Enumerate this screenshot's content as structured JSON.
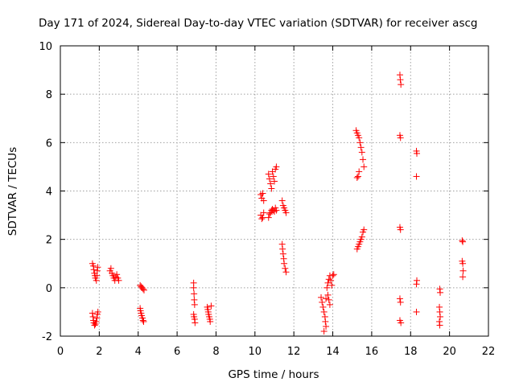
{
  "chart_data": {
    "type": "scatter",
    "title": "Day 171 of 2024, Sidereal Day-to-day VTEC variation (SDTVAR) for receiver ascg",
    "xlabel": "GPS time / hours",
    "ylabel": "SDTVAR / TECUs",
    "xlim": [
      0,
      22
    ],
    "ylim": [
      -2,
      10
    ],
    "xticks": [
      0,
      2,
      4,
      6,
      8,
      10,
      12,
      14,
      16,
      18,
      20,
      22
    ],
    "yticks": [
      -2,
      0,
      2,
      4,
      6,
      8,
      10
    ],
    "grid": true,
    "marker": "+",
    "color": "#ff0000",
    "series": [
      {
        "name": "SDTVAR",
        "points": [
          [
            1.65,
            1.0
          ],
          [
            1.7,
            0.9
          ],
          [
            1.72,
            0.75
          ],
          [
            1.75,
            0.6
          ],
          [
            1.78,
            0.5
          ],
          [
            1.8,
            0.4
          ],
          [
            1.85,
            0.3
          ],
          [
            1.88,
            0.5
          ],
          [
            1.9,
            0.7
          ],
          [
            1.92,
            0.85
          ],
          [
            1.65,
            -1.05
          ],
          [
            1.68,
            -1.2
          ],
          [
            1.7,
            -1.35
          ],
          [
            1.72,
            -1.45
          ],
          [
            1.76,
            -1.55
          ],
          [
            1.8,
            -1.5
          ],
          [
            1.84,
            -1.4
          ],
          [
            1.88,
            -1.25
          ],
          [
            1.9,
            -1.1
          ],
          [
            1.93,
            -1.0
          ],
          [
            2.55,
            0.7
          ],
          [
            2.6,
            0.8
          ],
          [
            2.65,
            0.6
          ],
          [
            2.7,
            0.5
          ],
          [
            2.75,
            0.4
          ],
          [
            2.8,
            0.3
          ],
          [
            2.85,
            0.45
          ],
          [
            2.9,
            0.55
          ],
          [
            2.95,
            0.4
          ],
          [
            3.0,
            0.3
          ],
          [
            4.1,
            0.1
          ],
          [
            4.15,
            0.05
          ],
          [
            4.2,
            0.0
          ],
          [
            4.25,
            -0.05
          ],
          [
            4.3,
            -0.1
          ],
          [
            4.1,
            -0.85
          ],
          [
            4.12,
            -0.95
          ],
          [
            4.15,
            -1.05
          ],
          [
            4.18,
            -1.15
          ],
          [
            4.22,
            -1.25
          ],
          [
            4.25,
            -1.35
          ],
          [
            4.28,
            -1.4
          ],
          [
            6.85,
            0.2
          ],
          [
            6.85,
            0.0
          ],
          [
            6.87,
            -0.25
          ],
          [
            6.88,
            -0.5
          ],
          [
            6.9,
            -0.7
          ],
          [
            6.85,
            -1.1
          ],
          [
            6.87,
            -1.2
          ],
          [
            6.9,
            -1.3
          ],
          [
            6.92,
            -1.45
          ],
          [
            7.55,
            -0.8
          ],
          [
            7.58,
            -0.9
          ],
          [
            7.6,
            -1.0
          ],
          [
            7.62,
            -1.1
          ],
          [
            7.65,
            -1.2
          ],
          [
            7.68,
            -1.3
          ],
          [
            7.7,
            -1.4
          ],
          [
            7.75,
            -0.75
          ],
          [
            10.3,
            3.85
          ],
          [
            10.35,
            3.7
          ],
          [
            10.4,
            3.9
          ],
          [
            10.45,
            3.6
          ],
          [
            10.3,
            3.0
          ],
          [
            10.35,
            2.85
          ],
          [
            10.4,
            2.9
          ],
          [
            10.45,
            3.1
          ],
          [
            10.7,
            4.7
          ],
          [
            10.75,
            4.5
          ],
          [
            10.8,
            4.3
          ],
          [
            10.85,
            4.1
          ],
          [
            10.9,
            4.8
          ],
          [
            10.95,
            4.6
          ],
          [
            11.0,
            4.4
          ],
          [
            11.05,
            4.9
          ],
          [
            11.1,
            5.0
          ],
          [
            10.7,
            2.9
          ],
          [
            10.75,
            3.05
          ],
          [
            10.8,
            3.1
          ],
          [
            10.85,
            3.2
          ],
          [
            10.9,
            3.25
          ],
          [
            10.95,
            3.2
          ],
          [
            11.0,
            3.15
          ],
          [
            11.05,
            3.3
          ],
          [
            11.1,
            3.2
          ],
          [
            11.4,
            3.6
          ],
          [
            11.45,
            3.4
          ],
          [
            11.5,
            3.3
          ],
          [
            11.55,
            3.2
          ],
          [
            11.6,
            3.1
          ],
          [
            11.4,
            1.8
          ],
          [
            11.42,
            1.6
          ],
          [
            11.45,
            1.4
          ],
          [
            11.48,
            1.2
          ],
          [
            11.5,
            1.0
          ],
          [
            11.55,
            0.8
          ],
          [
            11.6,
            0.65
          ],
          [
            13.4,
            -0.4
          ],
          [
            13.45,
            -0.6
          ],
          [
            13.5,
            -0.8
          ],
          [
            13.55,
            -1.0
          ],
          [
            13.6,
            -1.2
          ],
          [
            13.62,
            -1.4
          ],
          [
            13.65,
            -1.6
          ],
          [
            13.55,
            -1.8
          ],
          [
            13.7,
            0.0
          ],
          [
            13.75,
            0.2
          ],
          [
            13.8,
            0.35
          ],
          [
            13.85,
            0.5
          ],
          [
            13.9,
            0.3
          ],
          [
            13.95,
            0.1
          ],
          [
            14.0,
            0.5
          ],
          [
            14.05,
            0.55
          ],
          [
            13.75,
            -0.3
          ],
          [
            13.8,
            -0.5
          ],
          [
            13.85,
            -0.7
          ],
          [
            13.65,
            -0.45
          ],
          [
            15.2,
            6.5
          ],
          [
            15.25,
            6.4
          ],
          [
            15.3,
            6.3
          ],
          [
            15.35,
            6.2
          ],
          [
            15.4,
            6.0
          ],
          [
            15.45,
            5.8
          ],
          [
            15.5,
            5.6
          ],
          [
            15.55,
            5.3
          ],
          [
            15.6,
            5.0
          ],
          [
            15.35,
            4.8
          ],
          [
            15.3,
            4.6
          ],
          [
            15.25,
            4.55
          ],
          [
            15.25,
            1.6
          ],
          [
            15.3,
            1.7
          ],
          [
            15.35,
            1.8
          ],
          [
            15.4,
            1.9
          ],
          [
            15.45,
            2.0
          ],
          [
            15.5,
            2.1
          ],
          [
            15.55,
            2.3
          ],
          [
            15.6,
            2.4
          ],
          [
            17.45,
            8.8
          ],
          [
            17.47,
            8.6
          ],
          [
            17.5,
            8.4
          ],
          [
            17.45,
            6.3
          ],
          [
            17.48,
            6.2
          ],
          [
            17.45,
            2.5
          ],
          [
            17.48,
            2.4
          ],
          [
            17.45,
            -0.45
          ],
          [
            17.48,
            -0.6
          ],
          [
            17.45,
            -1.35
          ],
          [
            17.5,
            -1.45
          ],
          [
            18.3,
            5.65
          ],
          [
            18.32,
            5.55
          ],
          [
            18.3,
            4.6
          ],
          [
            18.32,
            0.3
          ],
          [
            18.3,
            0.15
          ],
          [
            18.3,
            -1.0
          ],
          [
            19.5,
            -0.05
          ],
          [
            19.52,
            -0.2
          ],
          [
            19.48,
            -0.8
          ],
          [
            19.5,
            -1.0
          ],
          [
            19.52,
            -1.2
          ],
          [
            19.48,
            -1.4
          ],
          [
            19.5,
            -1.55
          ],
          [
            20.65,
            1.95
          ],
          [
            20.68,
            1.9
          ],
          [
            20.65,
            1.1
          ],
          [
            20.68,
            1.0
          ],
          [
            20.7,
            0.7
          ],
          [
            20.68,
            0.45
          ]
        ]
      }
    ]
  }
}
